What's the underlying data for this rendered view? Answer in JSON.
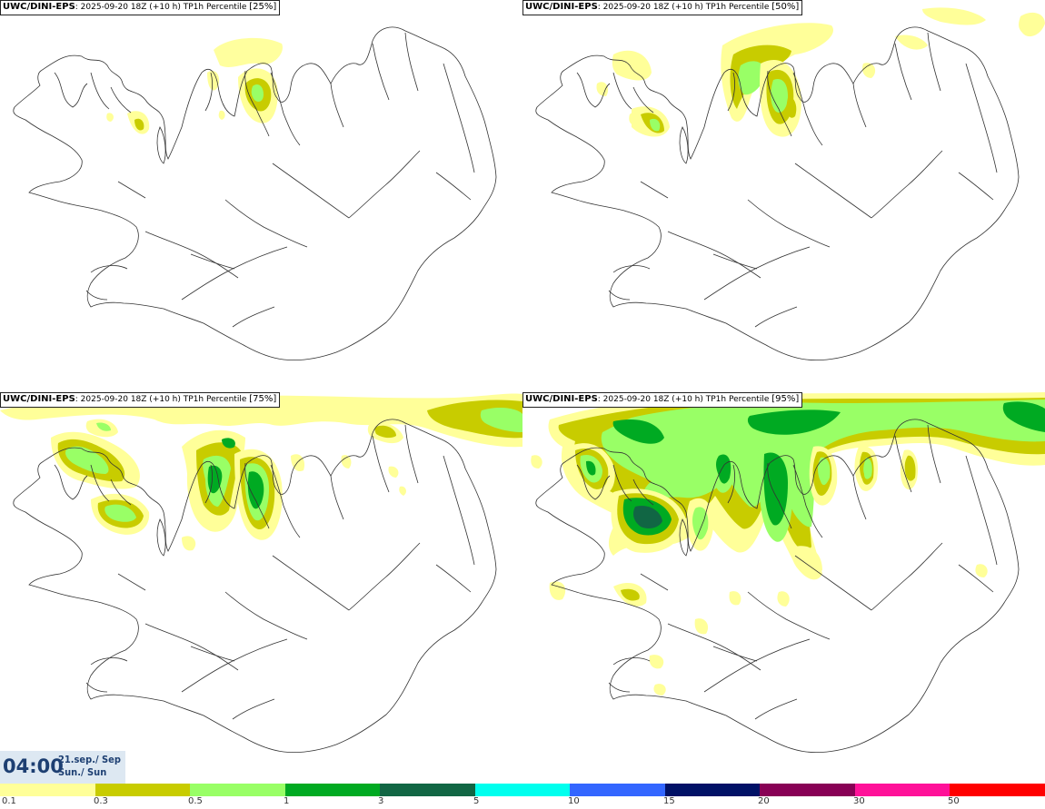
{
  "panels": [
    {
      "model": "UWC/DINI-EPS",
      "run": ": 2025-09-20 18Z (+10 h) TP1h Percentile",
      "percentile": "[25%]"
    },
    {
      "model": "UWC/DINI-EPS",
      "run": ": 2025-09-20 18Z (+10 h) TP1h Percentile",
      "percentile": "[50%]"
    },
    {
      "model": "UWC/DINI-EPS",
      "run": ": 2025-09-20 18Z (+10 h) TP1h Percentile",
      "percentile": "[75%]"
    },
    {
      "model": "UWC/DINI-EPS",
      "run": ": 2025-09-20 18Z (+10 h) TP1h Percentile",
      "percentile": "[95%]"
    }
  ],
  "time": {
    "clock": "04:00",
    "date": "21.sep./ Sep",
    "day": "Sun./ Sun"
  },
  "colorbar": {
    "colors": [
      "#ffff99",
      "#c8cc00",
      "#99ff66",
      "#00aa22",
      "#116644",
      "#00ffee",
      "#3366ff",
      "#001166",
      "#880055",
      "#ff1199",
      "#ff0000"
    ],
    "labels": [
      "0.1",
      "0.3",
      "0.5",
      "1",
      "3",
      "5",
      "10",
      "15",
      "20",
      "30",
      "50"
    ]
  },
  "map_colors": {
    "coast": "#333333",
    "light_yellow": "#ffff99",
    "olive": "#c8cc00",
    "light_green": "#99ff66",
    "green": "#00aa22",
    "dark_green": "#116644"
  }
}
